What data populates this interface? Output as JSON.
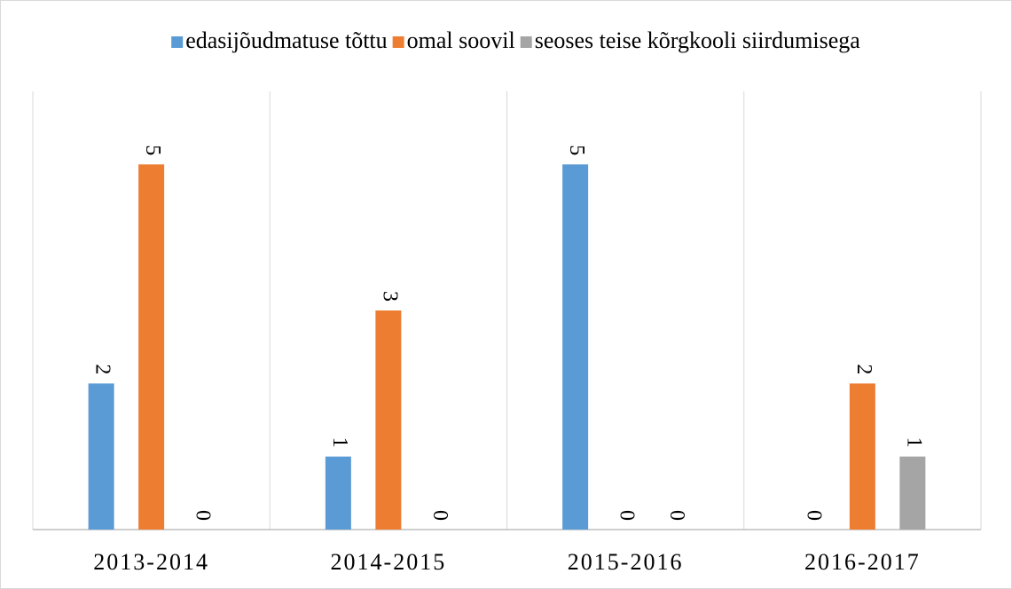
{
  "chart_data": {
    "type": "bar",
    "categories": [
      "2013-2014",
      "2014-2015",
      "2015-2016",
      "2016-2017"
    ],
    "series": [
      {
        "name": "edasijõudmatuse tõttu",
        "color": "#5b9bd5",
        "values": [
          2,
          1,
          5,
          0
        ]
      },
      {
        "name": "omal soovil",
        "color": "#ed7d31",
        "values": [
          5,
          3,
          0,
          2
        ]
      },
      {
        "name": "seoses teise kõrgkooli siirdumisega",
        "color": "#a5a5a5",
        "values": [
          0,
          0,
          0,
          1
        ]
      }
    ],
    "ylim": [
      0,
      6
    ],
    "legend": "top"
  }
}
